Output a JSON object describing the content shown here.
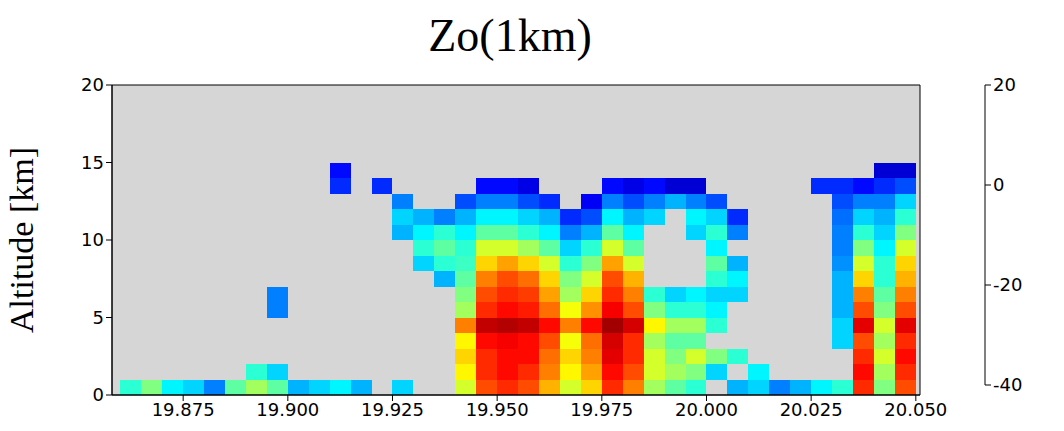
{
  "chart_data": {
    "type": "heatmap",
    "title": "Zo(1km)",
    "y_label": "Altitude [km]",
    "xlim": [
      19.858,
      20.051
    ],
    "xticks": [
      19.875,
      {
        "value": 19.9,
        "label": "19.900"
      },
      19.925,
      {
        "value": 19.95,
        "label": "19.950"
      },
      19.975,
      {
        "value": 20,
        "label": "20.000"
      },
      20.025,
      {
        "value": 20.05,
        "label": "20.050"
      }
    ],
    "ylim": [
      0,
      20
    ],
    "yticks": [
      0,
      5,
      10,
      15,
      20
    ],
    "x_edges": [
      19.86,
      19.865,
      19.87,
      19.875,
      19.88,
      19.885,
      19.89,
      19.895,
      19.9,
      19.905,
      19.91,
      19.915,
      19.92,
      19.925,
      19.93,
      19.935,
      19.94,
      19.945,
      19.95,
      19.955,
      19.96,
      19.965,
      19.97,
      19.975,
      19.98,
      19.985,
      19.99,
      19.995,
      20.0,
      20.005,
      20.01,
      20.015,
      20.02,
      20.025,
      20.03,
      20.035,
      20.04,
      20.045,
      20.05
    ],
    "y_edges": [
      0,
      1,
      2,
      3,
      4,
      5,
      6,
      7,
      8,
      9,
      10,
      11,
      12,
      13,
      14,
      15
    ],
    "cells": [
      [
        -15,
        null,
        null,
        null,
        null,
        null,
        null,
        null,
        null,
        null,
        null,
        null,
        null,
        null,
        null
      ],
      [
        -10,
        null,
        null,
        null,
        null,
        null,
        null,
        null,
        null,
        null,
        null,
        null,
        null,
        null,
        null
      ],
      [
        -18,
        null,
        null,
        null,
        null,
        null,
        null,
        null,
        null,
        null,
        null,
        null,
        null,
        null,
        null
      ],
      [
        -20,
        null,
        null,
        null,
        null,
        null,
        null,
        null,
        null,
        null,
        null,
        null,
        null,
        null,
        null
      ],
      [
        -25,
        null,
        null,
        null,
        null,
        null,
        null,
        null,
        null,
        null,
        null,
        null,
        null,
        null,
        null
      ],
      [
        -12,
        null,
        null,
        null,
        null,
        null,
        null,
        null,
        null,
        null,
        null,
        null,
        null,
        null,
        null
      ],
      [
        -8,
        -15,
        null,
        null,
        null,
        null,
        null,
        null,
        null,
        null,
        null,
        null,
        null,
        null,
        null
      ],
      [
        -12,
        -20,
        null,
        null,
        null,
        -25,
        -25,
        null,
        null,
        null,
        null,
        null,
        null,
        null,
        null
      ],
      [
        -22,
        null,
        null,
        null,
        null,
        null,
        null,
        null,
        null,
        null,
        null,
        null,
        null,
        null,
        null
      ],
      [
        -20,
        null,
        null,
        null,
        null,
        null,
        null,
        null,
        null,
        null,
        null,
        null,
        null,
        null,
        null
      ],
      [
        -18,
        null,
        null,
        null,
        null,
        null,
        null,
        null,
        null,
        null,
        null,
        null,
        null,
        -30,
        -32
      ],
      [
        -22,
        null,
        null,
        null,
        null,
        null,
        null,
        null,
        null,
        null,
        null,
        null,
        null,
        null,
        null
      ],
      [
        null,
        null,
        null,
        null,
        null,
        null,
        null,
        null,
        null,
        null,
        null,
        null,
        null,
        -30,
        null
      ],
      [
        -20,
        null,
        null,
        null,
        null,
        null,
        null,
        null,
        null,
        null,
        -22,
        -20,
        -25,
        null,
        null
      ],
      [
        null,
        null,
        null,
        null,
        null,
        null,
        null,
        null,
        -20,
        -15,
        -18,
        -22,
        null,
        null,
        null
      ],
      [
        null,
        null,
        null,
        null,
        null,
        null,
        null,
        -22,
        -15,
        -12,
        -15,
        -25,
        null,
        null,
        null
      ],
      [
        -5,
        -2,
        0,
        -2,
        5,
        -8,
        -10,
        -12,
        -14,
        -15,
        -18,
        -22,
        -28,
        null,
        null
      ],
      [
        8,
        10,
        10,
        12,
        16,
        10,
        8,
        5,
        0,
        -5,
        -12,
        -18,
        -25,
        -32,
        null
      ],
      [
        10,
        12,
        12,
        13,
        17,
        12,
        10,
        8,
        3,
        -5,
        -12,
        -18,
        -25,
        -32,
        null
      ],
      [
        8,
        10,
        12,
        12,
        16,
        11,
        9,
        6,
        0,
        -8,
        -15,
        -20,
        -28,
        -34,
        null
      ],
      [
        2,
        5,
        6,
        8,
        12,
        6,
        3,
        0,
        -5,
        -12,
        -18,
        -22,
        -30,
        null,
        null
      ],
      [
        -5,
        -2,
        0,
        -3,
        5,
        -3,
        -8,
        -10,
        -15,
        -20,
        -25,
        -30,
        null,
        null,
        null
      ],
      [
        0,
        3,
        5,
        6,
        12,
        4,
        0,
        -5,
        -10,
        -15,
        -22,
        -28,
        -33,
        null,
        null
      ],
      [
        10,
        12,
        14,
        15,
        18,
        13,
        10,
        8,
        3,
        -5,
        -12,
        -18,
        -25,
        -32,
        null
      ],
      [
        5,
        8,
        10,
        10,
        15,
        8,
        5,
        2,
        -5,
        -12,
        -18,
        -22,
        -28,
        -34,
        null
      ],
      [
        -8,
        -5,
        -5,
        -8,
        -2,
        -10,
        -15,
        null,
        null,
        null,
        null,
        -20,
        -25,
        -32,
        null
      ],
      [
        -12,
        -8,
        -10,
        -12,
        -8,
        -15,
        -20,
        null,
        null,
        null,
        null,
        null,
        -22,
        -35,
        null
      ],
      [
        -15,
        -10,
        -5,
        -12,
        -8,
        -15,
        -18,
        null,
        null,
        null,
        -20,
        -18,
        -25,
        -35,
        null
      ],
      [
        null,
        -20,
        -10,
        null,
        -15,
        -18,
        -20,
        -15,
        -12,
        -18,
        -15,
        -20,
        -28,
        null,
        null
      ],
      [
        -22,
        null,
        -15,
        null,
        null,
        null,
        -20,
        -18,
        -22,
        null,
        -25,
        -30,
        null,
        null,
        null
      ],
      [
        -20,
        -18,
        null,
        null,
        null,
        null,
        null,
        null,
        null,
        null,
        null,
        null,
        null,
        null,
        null
      ],
      [
        -25,
        null,
        null,
        null,
        null,
        null,
        null,
        null,
        null,
        null,
        null,
        null,
        null,
        null,
        null
      ],
      [
        -22,
        null,
        null,
        null,
        null,
        null,
        null,
        null,
        null,
        null,
        null,
        null,
        null,
        null,
        null
      ],
      [
        -18,
        null,
        null,
        null,
        null,
        null,
        null,
        null,
        null,
        null,
        null,
        null,
        null,
        -30,
        null
      ],
      [
        -15,
        null,
        null,
        -20,
        -20,
        -22,
        -22,
        -22,
        -24,
        -25,
        -25,
        -26,
        -28,
        -30,
        null
      ],
      [
        10,
        12,
        10,
        8,
        14,
        8,
        5,
        0,
        -5,
        -10,
        -15,
        -20,
        -25,
        -32,
        null
      ],
      [
        -10,
        -8,
        -5,
        -8,
        -5,
        -10,
        -12,
        -15,
        -15,
        -18,
        -20,
        -22,
        -25,
        -30,
        -35
      ],
      [
        8,
        10,
        12,
        10,
        14,
        8,
        5,
        2,
        0,
        -5,
        -10,
        -15,
        -20,
        -28,
        -35
      ]
    ],
    "colorbar_range": [
      -40,
      20
    ],
    "colorbar_ticks": [
      20,
      0,
      -20,
      -40
    ]
  }
}
